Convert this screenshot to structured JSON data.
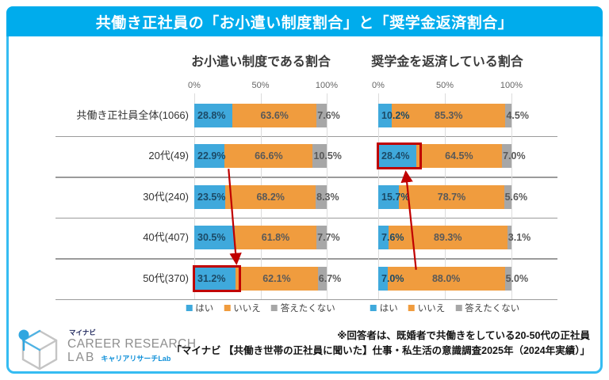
{
  "header": {
    "title": "共働き正社員の「お小遣い制度割合」と「奨学金返済割合」"
  },
  "chart_data": [
    {
      "type": "bar",
      "stacked": true,
      "orientation": "horizontal",
      "title": "お小遣い制度である割合",
      "xlim": [
        0,
        100
      ],
      "ticks": [
        "0%",
        "50%",
        "100%"
      ],
      "grid": true,
      "legend_position": "bottom",
      "categories": [
        "共働き正社員全体(1066)",
        "20代(49)",
        "30代(240)",
        "40代(407)",
        "50代(370)"
      ],
      "series": [
        {
          "name": "はい",
          "color": "#3FA9DC",
          "values": [
            28.8,
            22.9,
            23.5,
            30.5,
            31.2
          ]
        },
        {
          "name": "いいえ",
          "color": "#F09C3E",
          "values": [
            63.6,
            66.6,
            68.2,
            61.8,
            62.1
          ]
        },
        {
          "name": "答えたくない",
          "color": "#A7A7A7",
          "values": [
            7.6,
            10.5,
            8.3,
            7.7,
            6.7
          ]
        }
      ]
    },
    {
      "type": "bar",
      "stacked": true,
      "orientation": "horizontal",
      "title": "奨学金を返済している割合",
      "xlim": [
        0,
        100
      ],
      "ticks": [
        "0%",
        "50%",
        "100%"
      ],
      "grid": true,
      "legend_position": "bottom",
      "categories": [
        "共働き正社員全体(1066)",
        "20代(49)",
        "30代(240)",
        "40代(407)",
        "50代(370)"
      ],
      "series": [
        {
          "name": "はい",
          "color": "#3FA9DC",
          "values": [
            10.2,
            28.4,
            15.7,
            7.6,
            7.0
          ]
        },
        {
          "name": "いいえ",
          "color": "#F09C3E",
          "values": [
            85.3,
            64.5,
            78.7,
            89.3,
            88.0
          ]
        },
        {
          "name": "答えたくない",
          "color": "#A7A7A7",
          "values": [
            4.5,
            7.0,
            5.6,
            3.1,
            5.0
          ]
        }
      ]
    }
  ],
  "annotations": {
    "color": "#C00000",
    "boxes": [
      {
        "chart": 0,
        "row": 4,
        "series": "はい",
        "value": "31.2%"
      },
      {
        "chart": 1,
        "row": 1,
        "series": "はい",
        "value": "28.4%"
      }
    ],
    "arrows": [
      {
        "chart": 0,
        "from_row": 1,
        "to_row": 4,
        "direction": "down"
      },
      {
        "chart": 1,
        "from_row": 4,
        "to_row": 1,
        "direction": "up"
      }
    ]
  },
  "footer": {
    "note1": "※回答者は、既婚者で共働きをしている20-50代の正社員",
    "note2": "「マイナビ 【共働き世帯の正社員に聞いた】仕事・私生活の意識調査2025年（2024年実績）」",
    "logo": {
      "brand_small": "マイナビ",
      "line1": "CAREER RESEARCH",
      "line2": "LAB",
      "line2_sub": "キャリアリサーチLab"
    }
  }
}
